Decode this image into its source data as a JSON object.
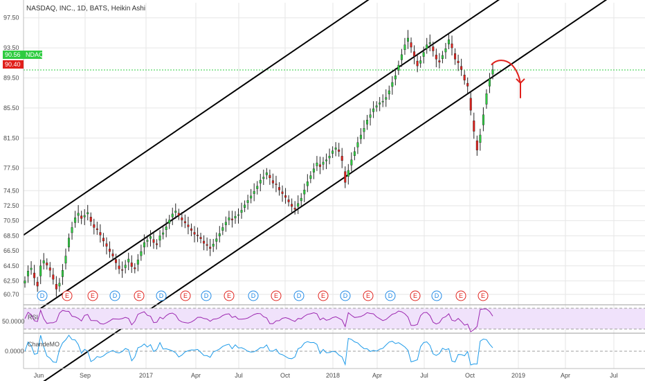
{
  "chart_data": {
    "type": "candlestick",
    "title": "NASDAQ, INC., 1D, BATS, Heikin Ashi",
    "price_axis": {
      "ticks": [
        "97.50",
        "93.50",
        "89.50",
        "85.50",
        "81.50",
        "77.50",
        "74.50",
        "72.50",
        "70.50",
        "68.50",
        "66.50",
        "64.50",
        "62.50",
        "60.70"
      ],
      "ylim": [
        59.5,
        99.5
      ]
    },
    "current_price": {
      "value": "90.56",
      "tag": "NDAQ",
      "color": "#2ecc40"
    },
    "alt_price": {
      "value": "90.40",
      "color": "#e0201b"
    },
    "time_axis": [
      "Jun",
      "Sep",
      "2017",
      "Apr",
      "Jul",
      "Oct",
      "2018",
      "Apr",
      "Jul",
      "Oct",
      "2019",
      "Apr",
      "Jul"
    ],
    "price_series": [
      62.5,
      63.8,
      64.2,
      62.9,
      61.8,
      64.5,
      65.2,
      64.6,
      63.9,
      62.7,
      61.4,
      62.2,
      63.9,
      65.8,
      68.2,
      69.6,
      70.9,
      71.5,
      70.8,
      71.2,
      71.6,
      70.4,
      69.6,
      69.3,
      68.6,
      67.8,
      67.1,
      66.4,
      65.8,
      64.9,
      64.1,
      63.9,
      64.6,
      65.4,
      64.4,
      64.1,
      65.3,
      66.4,
      67.6,
      67.9,
      68.4,
      67.6,
      67.3,
      68.5,
      68.9,
      69.7,
      70.6,
      71.4,
      71.8,
      71.2,
      70.6,
      70.2,
      69.7,
      69.2,
      68.7,
      68.5,
      68.1,
      67.5,
      67.2,
      66.8,
      67.4,
      68.1,
      68.8,
      69.6,
      70.3,
      70.9,
      70.6,
      71.1,
      71.3,
      71.9,
      72.6,
      73.2,
      73.8,
      74.4,
      75.1,
      75.9,
      76.3,
      76.9,
      76.2,
      75.5,
      75.3,
      74.6,
      74.1,
      73.6,
      73.0,
      72.4,
      72.0,
      72.8,
      73.5,
      74.6,
      75.7,
      76.5,
      77.4,
      78.2,
      77.7,
      78.3,
      78.6,
      79.1,
      79.8,
      80.2,
      79.7,
      78.5,
      75.6,
      77.2,
      78.6,
      79.7,
      80.9,
      81.9,
      82.8,
      83.9,
      84.6,
      85.4,
      85.8,
      86.2,
      86.4,
      86.9,
      87.8,
      88.9,
      89.8,
      91.2,
      92.6,
      93.9,
      94.8,
      93.6,
      92.4,
      91.1,
      91.8,
      92.9,
      93.9,
      94.2,
      93.1,
      92.0,
      91.6,
      92.5,
      93.4,
      94.6,
      93.5,
      92.0,
      91.5,
      90.6,
      89.2,
      88.4,
      85.2,
      82.4,
      79.9,
      81.9,
      84.6,
      87.4,
      89.4,
      90.6
    ],
    "channel_lines": [
      {
        "name": "upper",
        "from": [
          0,
          68.6
        ],
        "to": [
          1,
          125.0
        ]
      },
      {
        "name": "middle",
        "from": [
          0,
          57.3
        ],
        "to": [
          1,
          113.0
        ]
      },
      {
        "name": "lower",
        "from": [
          0,
          47.3
        ],
        "to": [
          1,
          103.4
        ]
      }
    ],
    "event_markers": [
      "D",
      "E",
      "E",
      "D",
      "E",
      "D",
      "E",
      "D",
      "E",
      "D",
      "E",
      "D",
      "E",
      "D",
      "E",
      "D",
      "E",
      "D",
      "E",
      "E"
    ],
    "projection_arrow": {
      "color": "#e0201b",
      "from_price": 91.6,
      "to_price": 86.8
    },
    "indicators": [
      {
        "name": "RSI",
        "value_label": "50.0000",
        "color": "#9c27b0",
        "fill": "#f0e2fb"
      },
      {
        "name": "ChandeMO",
        "value_label": "0.0000",
        "color": "#1e9be9"
      }
    ],
    "colors": {
      "up": "#2ecc40",
      "down": "#e0201b",
      "wick": "#222222",
      "grid": "#e6e6e6",
      "dividend": "#1e88e5",
      "earnings": "#e0201b"
    }
  }
}
